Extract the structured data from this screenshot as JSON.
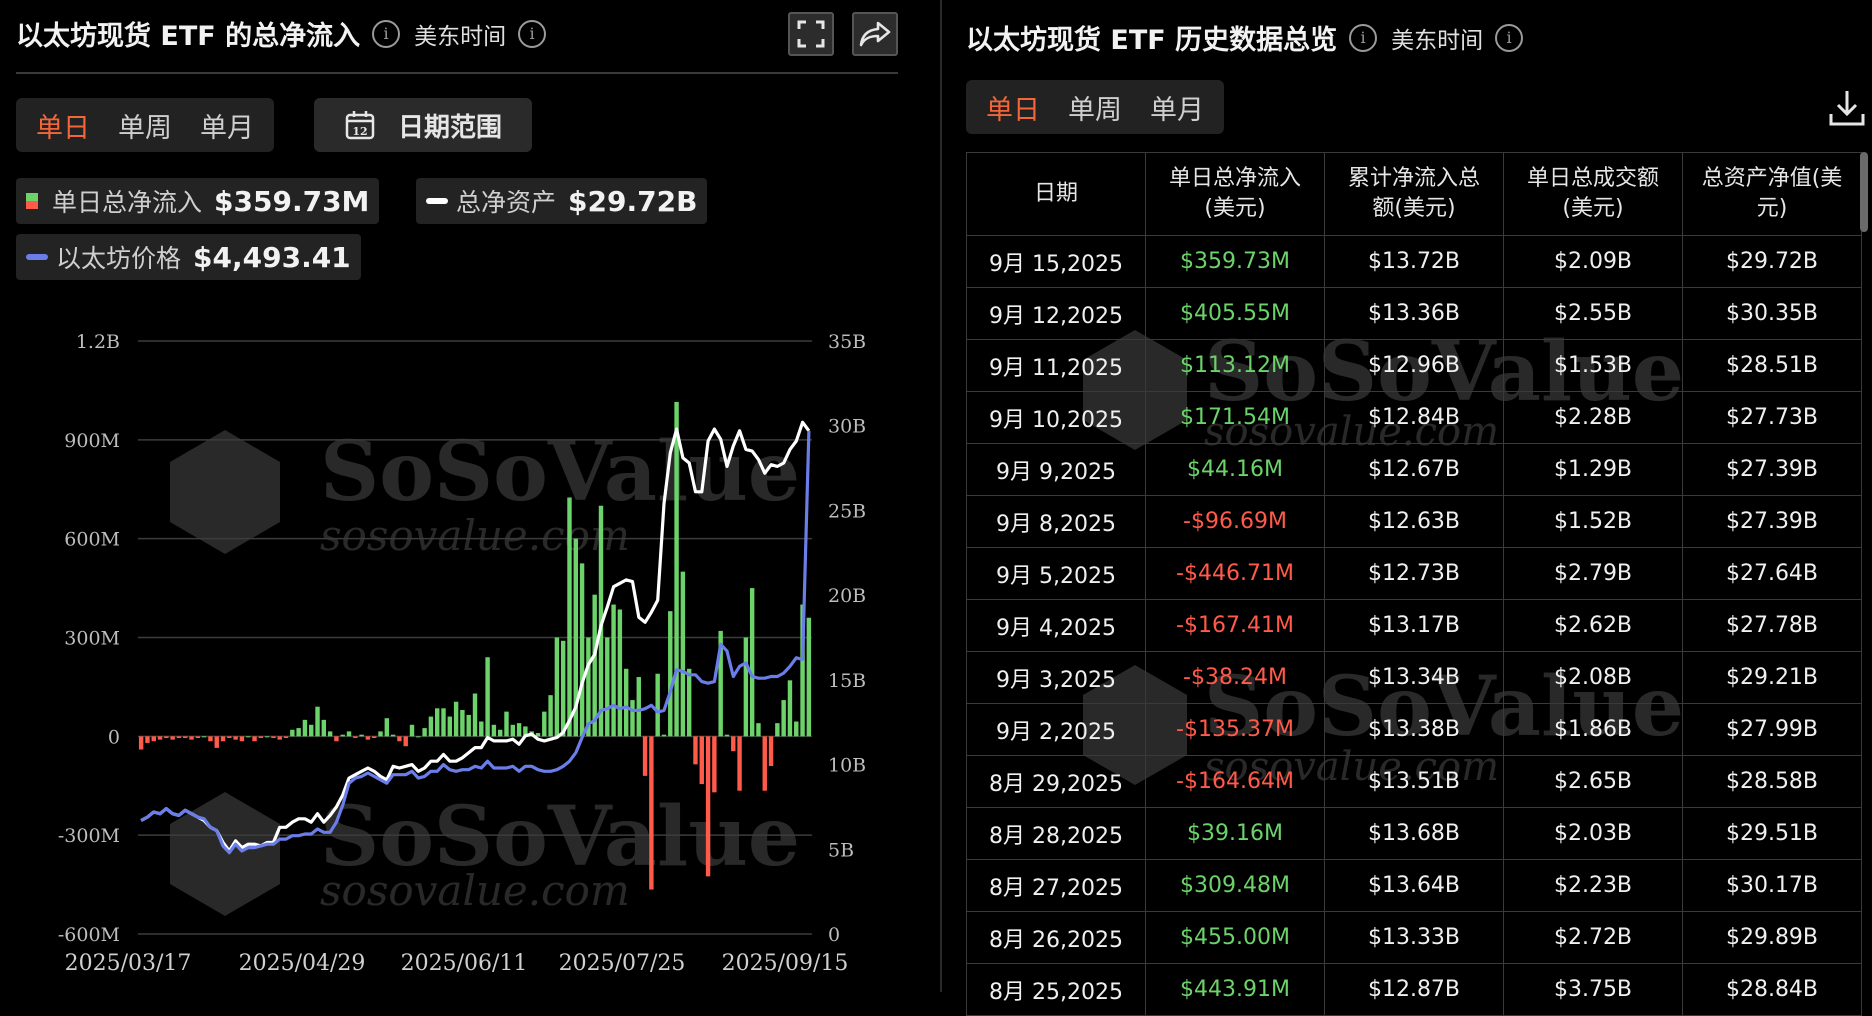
{
  "left": {
    "title": "以太坊现货 ETF 的总净流入",
    "timezone": "美东时间",
    "tabs": [
      "单日",
      "单周",
      "单月"
    ],
    "active_tab": "单日",
    "date_range_label": "日期范围",
    "calendar_day": "12",
    "legend": {
      "inflow_label": "单日总净流入",
      "inflow_value": "$359.73M",
      "assets_label": "总净资产",
      "assets_value": "$29.72B",
      "price_label": "以太坊价格",
      "price_value": "$4,493.41"
    },
    "watermark": {
      "brand": "SoSoValue",
      "url": "sosovalue.com"
    }
  },
  "right": {
    "title": "以太坊现货 ETF 历史数据总览",
    "timezone": "美东时间",
    "tabs": [
      "单日",
      "单周",
      "单月"
    ],
    "active_tab": "单日",
    "columns": [
      {
        "l1": "日期",
        "l2": ""
      },
      {
        "l1": "单日总净流入",
        "l2": "(美元)"
      },
      {
        "l1": "累计净流入总",
        "l2": "额(美元)"
      },
      {
        "l1": "单日总成交额",
        "l2": "(美元)"
      },
      {
        "l1": "总资产净值(美",
        "l2": "元)"
      }
    ],
    "rows": [
      {
        "date": "9月 15,2025",
        "inflow": "$359.73M",
        "sign": "pos",
        "cum": "$13.72B",
        "vol": "$2.09B",
        "nav": "$29.72B"
      },
      {
        "date": "9月 12,2025",
        "inflow": "$405.55M",
        "sign": "pos",
        "cum": "$13.36B",
        "vol": "$2.55B",
        "nav": "$30.35B"
      },
      {
        "date": "9月 11,2025",
        "inflow": "$113.12M",
        "sign": "pos",
        "cum": "$12.96B",
        "vol": "$1.53B",
        "nav": "$28.51B"
      },
      {
        "date": "9月 10,2025",
        "inflow": "$171.54M",
        "sign": "pos",
        "cum": "$12.84B",
        "vol": "$2.28B",
        "nav": "$27.73B"
      },
      {
        "date": "9月 9,2025",
        "inflow": "$44.16M",
        "sign": "pos",
        "cum": "$12.67B",
        "vol": "$1.29B",
        "nav": "$27.39B"
      },
      {
        "date": "9月 8,2025",
        "inflow": "-$96.69M",
        "sign": "neg",
        "cum": "$12.63B",
        "vol": "$1.52B",
        "nav": "$27.39B"
      },
      {
        "date": "9月 5,2025",
        "inflow": "-$446.71M",
        "sign": "neg",
        "cum": "$12.73B",
        "vol": "$2.79B",
        "nav": "$27.64B"
      },
      {
        "date": "9月 4,2025",
        "inflow": "-$167.41M",
        "sign": "neg",
        "cum": "$13.17B",
        "vol": "$2.62B",
        "nav": "$27.78B"
      },
      {
        "date": "9月 3,2025",
        "inflow": "-$38.24M",
        "sign": "neg",
        "cum": "$13.34B",
        "vol": "$2.08B",
        "nav": "$29.21B"
      },
      {
        "date": "9月 2,2025",
        "inflow": "-$135.37M",
        "sign": "neg",
        "cum": "$13.38B",
        "vol": "$1.86B",
        "nav": "$27.99B"
      },
      {
        "date": "8月 29,2025",
        "inflow": "-$164.64M",
        "sign": "neg",
        "cum": "$13.51B",
        "vol": "$2.65B",
        "nav": "$28.58B"
      },
      {
        "date": "8月 28,2025",
        "inflow": "$39.16M",
        "sign": "pos",
        "cum": "$13.68B",
        "vol": "$2.03B",
        "nav": "$29.51B"
      },
      {
        "date": "8月 27,2025",
        "inflow": "$309.48M",
        "sign": "pos",
        "cum": "$13.64B",
        "vol": "$2.23B",
        "nav": "$30.17B"
      },
      {
        "date": "8月 26,2025",
        "inflow": "$455.00M",
        "sign": "pos",
        "cum": "$13.33B",
        "vol": "$2.72B",
        "nav": "$29.89B"
      },
      {
        "date": "8月 25,2025",
        "inflow": "$443.91M",
        "sign": "pos",
        "cum": "$12.87B",
        "vol": "$3.75B",
        "nav": "$28.84B"
      }
    ]
  },
  "colors": {
    "positive": "#6cd36a",
    "negative": "#ff5a4a",
    "accent": "#f2663a",
    "assets_line": "#ffffff",
    "price_line": "#6b7de8"
  },
  "chart_data": {
    "type": "bar",
    "left_axis_ticks": [
      "1.2B",
      "900M",
      "600M",
      "300M",
      "0",
      "-300M",
      "-600M"
    ],
    "left_axis_values": [
      1200,
      900,
      600,
      300,
      0,
      -300,
      -600
    ],
    "right_axis_ticks": [
      "35B",
      "30B",
      "25B",
      "20B",
      "15B",
      "10B",
      "5B",
      "0"
    ],
    "right_axis_values": [
      35,
      30,
      25,
      20,
      15,
      10,
      5,
      0
    ],
    "x_ticks": [
      "2025/03/17",
      "2025/04/29",
      "2025/06/11",
      "2025/07/25",
      "2025/09/15"
    ],
    "ylim_left": [
      -600,
      1200
    ],
    "ylim_right": [
      0,
      35
    ],
    "series_inflow_musd": [
      -40,
      -20,
      -15,
      -10,
      -5,
      -10,
      -5,
      -5,
      -10,
      -5,
      0,
      -15,
      -35,
      -15,
      -5,
      -10,
      -15,
      0,
      -15,
      -5,
      0,
      -5,
      -10,
      -5,
      20,
      25,
      50,
      35,
      90,
      50,
      15,
      -15,
      5,
      15,
      -5,
      5,
      -10,
      -5,
      15,
      55,
      5,
      -15,
      -30,
      35,
      0,
      25,
      60,
      85,
      85,
      60,
      105,
      80,
      65,
      130,
      45,
      240,
      35,
      20,
      75,
      35,
      40,
      30,
      15,
      10,
      75,
      125,
      300,
      290,
      725,
      600,
      525,
      300,
      430,
      700,
      300,
      400,
      385,
      205,
      110,
      180,
      -120,
      -465,
      190,
      5,
      380,
      1015,
      500,
      205,
      -85,
      -145,
      -425,
      -170,
      320,
      5,
      -45,
      -165,
      300,
      450,
      40,
      -165,
      -90,
      40,
      110,
      170,
      45,
      400,
      360
    ],
    "series_assets_busd": [
      6.7,
      6.9,
      7.2,
      7.1,
      7.4,
      7.1,
      7.0,
      7.3,
      7.1,
      6.9,
      6.7,
      6.3,
      6.1,
      5.4,
      4.9,
      5.5,
      5.1,
      5.3,
      5.3,
      5.2,
      5.4,
      5.4,
      6.3,
      6.3,
      6.6,
      6.8,
      6.8,
      6.6,
      7.1,
      6.6,
      7.0,
      7.5,
      8.2,
      9.2,
      9.4,
      9.6,
      9.8,
      9.6,
      9.3,
      9.1,
      9.9,
      9.8,
      9.9,
      10.0,
      9.6,
      9.8,
      10.2,
      10.2,
      10.6,
      10.2,
      10.2,
      10.4,
      10.7,
      11.0,
      11.0,
      11.6,
      11.4,
      11.4,
      11.4,
      11.5,
      11.2,
      11.7,
      11.8,
      11.5,
      11.4,
      11.5,
      11.6,
      11.9,
      12.6,
      13.4,
      14.8,
      15.9,
      16.5,
      18.2,
      19.3,
      20.5,
      20.7,
      20.9,
      20.8,
      18.7,
      18.4,
      19.0,
      19.7,
      25.4,
      28.4,
      29.8,
      28.1,
      27.8,
      26.1,
      26.1,
      29.1,
      29.8,
      29.2,
      27.6,
      28.8,
      29.7,
      28.6,
      28.5,
      28.0,
      27.2,
      27.7,
      27.6,
      27.8,
      28.6,
      29.1,
      30.2,
      29.7
    ]
  }
}
